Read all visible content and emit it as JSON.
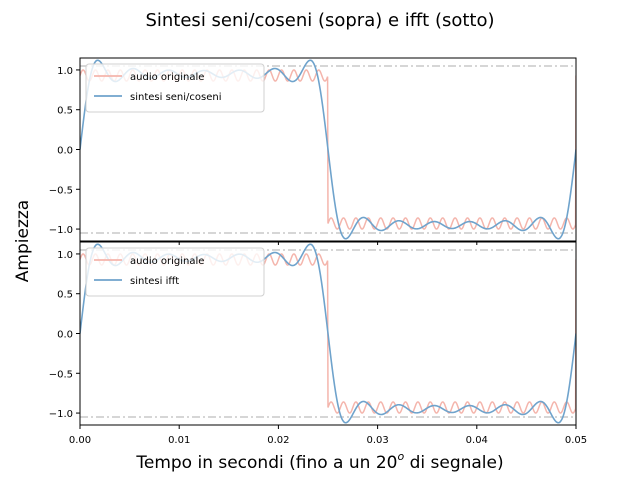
{
  "figure": {
    "suptitle": "Sintesi seni/coseni (sopra) e ifft (sotto)",
    "ylabel": "Ampiezza",
    "xlabel_main": "Tempo in secondi (fino a un 20",
    "xlabel_sup": "o",
    "xlabel_tail": " di segnale)"
  },
  "chart_data": [
    {
      "type": "line",
      "xlim": [
        0,
        0.05
      ],
      "ylim": [
        -1.15,
        1.15
      ],
      "xticks": [
        0.0,
        0.01,
        0.02,
        0.03,
        0.04,
        0.05
      ],
      "xtick_labels": [
        "",
        "",
        "",
        "",
        "",
        ""
      ],
      "yticks": [
        1.0,
        0.5,
        0.0,
        -0.5,
        -1.0
      ],
      "ytick_labels": [
        "1.0",
        "0.5",
        "0.0",
        "−0.5",
        "−1.0"
      ],
      "reference_lines": [
        1.05,
        -1.05
      ],
      "legend_location": "upper-left",
      "series": [
        {
          "name": "audio originale",
          "kind": "square-with-ripple",
          "color": "#f4b5ac",
          "period": 0.05,
          "amplitude": 1.0,
          "ripple": 0.14,
          "ripple_freq": 800
        },
        {
          "name": "sintesi seni/coseni",
          "kind": "fourier-square",
          "color": "#6fa3cc",
          "period": 0.05,
          "harmonics": [
            1,
            3,
            5,
            7,
            9,
            11,
            13
          ]
        }
      ]
    },
    {
      "type": "line",
      "xlim": [
        0,
        0.05
      ],
      "ylim": [
        -1.15,
        1.15
      ],
      "xticks": [
        0.0,
        0.01,
        0.02,
        0.03,
        0.04,
        0.05
      ],
      "xtick_labels": [
        "0.00",
        "0.01",
        "0.02",
        "0.03",
        "0.04",
        "0.05"
      ],
      "yticks": [
        1.0,
        0.5,
        0.0,
        -0.5,
        -1.0
      ],
      "ytick_labels": [
        "1.0",
        "0.5",
        "0.0",
        "−0.5",
        "−1.0"
      ],
      "reference_lines": [
        1.05,
        -1.05
      ],
      "legend_location": "upper-left",
      "series": [
        {
          "name": "audio originale",
          "kind": "square-with-ripple",
          "color": "#f4b5ac",
          "period": 0.05,
          "amplitude": 1.0,
          "ripple": 0.14,
          "ripple_freq": 800
        },
        {
          "name": "sintesi ifft",
          "kind": "fourier-square",
          "color": "#6fa3cc",
          "period": 0.05,
          "harmonics": [
            1,
            3,
            5,
            7,
            9,
            11,
            13
          ]
        }
      ]
    }
  ],
  "colors": {
    "reference_line": "#c8c8c8",
    "axes": "#000000"
  }
}
